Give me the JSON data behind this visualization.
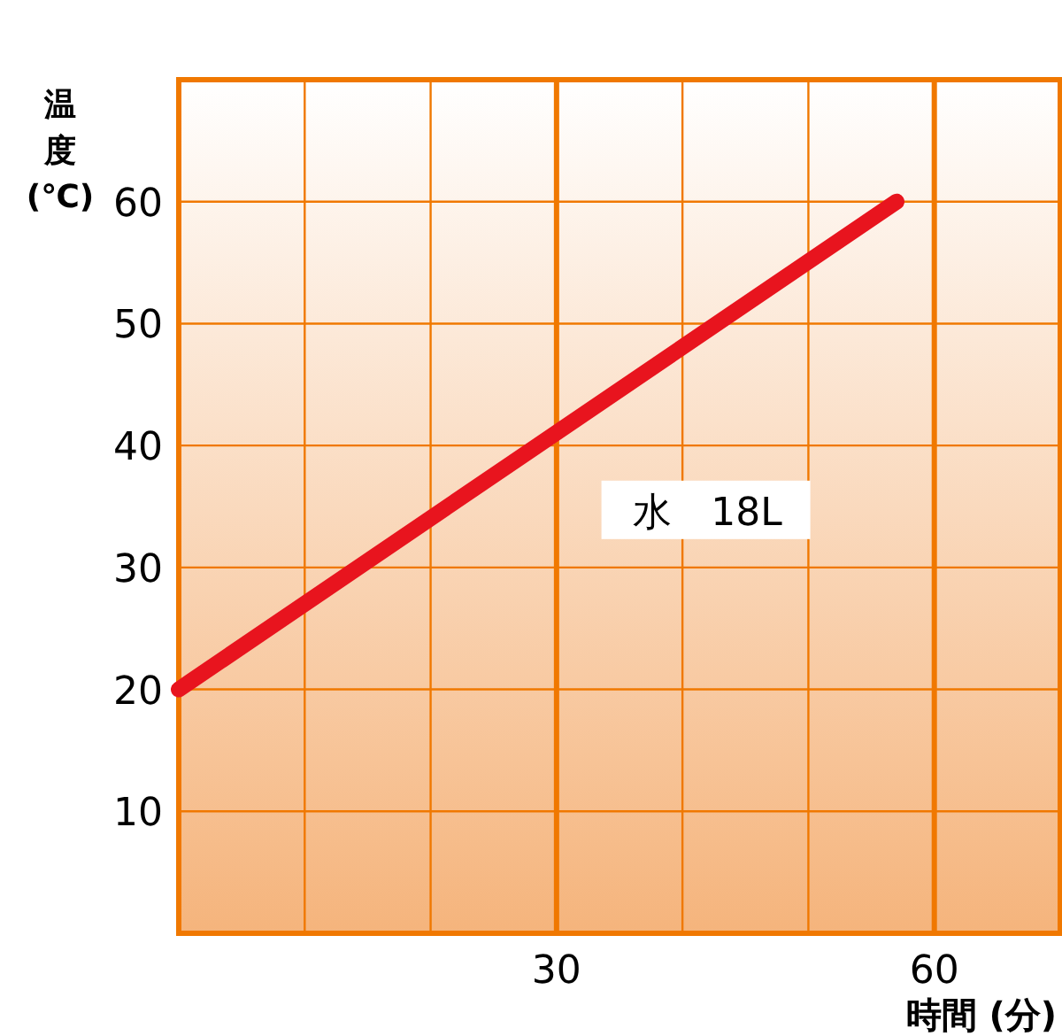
{
  "chart_data": {
    "type": "line",
    "xlabel": "時間 (分)",
    "ylabel": "温度(℃)",
    "x": [
      0,
      57
    ],
    "series": [
      {
        "name": "水　18L",
        "color": "#e8141e",
        "values": [
          20,
          60
        ]
      }
    ],
    "xlim": [
      0,
      70
    ],
    "xticks": [
      {
        "value": 10,
        "label": null
      },
      {
        "value": 20,
        "label": null
      },
      30,
      {
        "value": 40,
        "label": null
      },
      {
        "value": 50,
        "label": null
      },
      60
    ],
    "ylim": [
      0,
      70
    ],
    "yticks": [
      10,
      20,
      30,
      40,
      50,
      60
    ],
    "grid": true,
    "marker": "none",
    "line_style": "solid"
  }
}
